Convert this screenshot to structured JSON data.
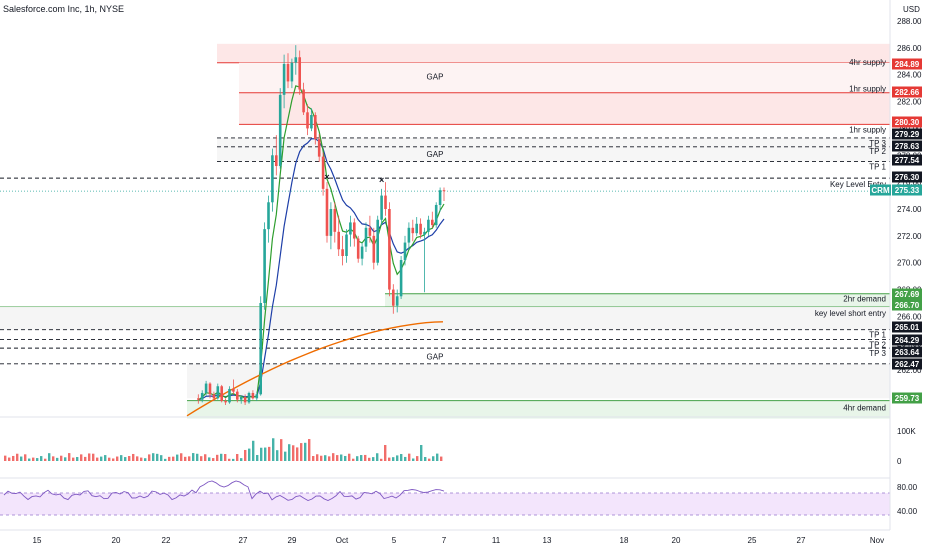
{
  "header": {
    "title": "Salesforce.com Inc, 1h, NYSE",
    "currency": "USD"
  },
  "chart_data": {
    "type": "candlestick",
    "title": "Salesforce.com Inc, 1h, NYSE",
    "currency": "USD",
    "y_ticks": [
      "288.00",
      "286.00",
      "284.00",
      "282.00",
      "280.00",
      "278.00",
      "276.00",
      "274.00",
      "272.00",
      "270.00",
      "268.00",
      "266.00",
      "264.00",
      "262.00",
      "260.00"
    ],
    "x_ticks": [
      "15",
      "20",
      "22",
      "27",
      "29",
      "Oct",
      "5",
      "7",
      "11",
      "13",
      "18",
      "20",
      "25",
      "27",
      "Nov"
    ],
    "price_tags": [
      {
        "value": "284.89",
        "color": "#e53935"
      },
      {
        "value": "282.66",
        "color": "#e53935"
      },
      {
        "value": "280.30",
        "color": "#e53935"
      },
      {
        "value": "279.29",
        "color": "#131722"
      },
      {
        "value": "278.63",
        "color": "#131722"
      },
      {
        "value": "277.54",
        "color": "#131722"
      },
      {
        "value": "276.30",
        "color": "#131722"
      },
      {
        "value": "275.33",
        "color": "#26a69a",
        "symbol": "CRM"
      },
      {
        "value": "267.69",
        "color": "#43a047"
      },
      {
        "value": "266.70",
        "color": "#43a047"
      },
      {
        "value": "265.01",
        "color": "#131722"
      },
      {
        "value": "264.29",
        "color": "#131722"
      },
      {
        "value": "263.64",
        "color": "#131722"
      },
      {
        "value": "262.47",
        "color": "#131722"
      },
      {
        "value": "259.73",
        "color": "#43a047"
      }
    ],
    "zones": [
      {
        "label": "4hr supply",
        "top": 286.3,
        "bottom": 284.89,
        "type": "supply"
      },
      {
        "label": "1hr supply",
        "top": 284.89,
        "bottom": 282.66,
        "type": "supply"
      },
      {
        "label": "1hr supply",
        "top": 282.66,
        "bottom": 280.3,
        "type": "supply"
      },
      {
        "label": "2hr demand",
        "top": 267.69,
        "bottom": 266.7,
        "type": "demand"
      },
      {
        "label": "4hr demand",
        "top": 259.73,
        "bottom": 258.5,
        "type": "demand"
      }
    ],
    "annotations": [
      "GAP",
      "GAP",
      "GAP",
      "TP 3",
      "TP 2",
      "TP 1",
      "TP 1",
      "TP 2",
      "TP 3",
      "Key Level Entry",
      "key level short entry"
    ],
    "lines": [
      {
        "label": "TP 3",
        "value": 279.29,
        "style": "dashed"
      },
      {
        "label": "TP 2",
        "value": 278.63,
        "style": "dashed"
      },
      {
        "label": "TP 1",
        "value": 277.54,
        "style": "dashed"
      },
      {
        "label": "Key Level Entry",
        "value": 276.3,
        "style": "dashed"
      },
      {
        "label": "key level short entry",
        "value": 265.01,
        "style": "dashed"
      },
      {
        "label": "TP 1",
        "value": 264.29,
        "style": "dashed"
      },
      {
        "label": "TP 2",
        "value": 263.64,
        "style": "dashed"
      },
      {
        "label": "TP 3",
        "value": 262.47,
        "style": "dashed"
      }
    ],
    "last_price": 275.33,
    "ylim": [
      258.5,
      289.5
    ],
    "volume": {
      "ticks": [
        "100K",
        "0"
      ]
    },
    "rsi": {
      "ticks": [
        "80.00",
        "40.00"
      ],
      "last": 58
    },
    "ohlc_approx": [
      [
        259.9,
        260.2,
        259.5,
        259.8
      ],
      [
        259.8,
        260.5,
        259.6,
        260.3
      ],
      [
        260.3,
        261.2,
        260.1,
        261.0
      ],
      [
        261.0,
        261.1,
        259.9,
        260.2
      ],
      [
        260.2,
        260.4,
        259.7,
        259.9
      ],
      [
        259.9,
        261.0,
        259.8,
        260.8
      ],
      [
        260.8,
        260.9,
        259.6,
        259.7
      ],
      [
        259.7,
        259.9,
        259.4,
        259.6
      ],
      [
        259.6,
        260.8,
        259.5,
        260.6
      ],
      [
        260.6,
        261.3,
        260.2,
        260.4
      ],
      [
        260.4,
        260.6,
        259.6,
        259.8
      ],
      [
        259.8,
        260.1,
        259.5,
        260.0
      ],
      [
        260.0,
        260.2,
        259.4,
        259.6
      ],
      [
        259.6,
        260.4,
        259.5,
        260.3
      ],
      [
        260.3,
        260.5,
        259.8,
        259.9
      ],
      [
        259.9,
        260.4,
        259.7,
        260.2
      ],
      [
        260.2,
        267.5,
        260.1,
        267.0
      ],
      [
        267.0,
        273.0,
        266.5,
        272.5
      ],
      [
        272.5,
        275.0,
        271.5,
        274.5
      ],
      [
        274.5,
        278.5,
        273.8,
        278.0
      ],
      [
        278.0,
        279.5,
        276.5,
        277.2
      ],
      [
        277.2,
        283.0,
        277.0,
        282.5
      ],
      [
        282.5,
        285.5,
        281.5,
        284.8
      ],
      [
        284.8,
        285.6,
        283.0,
        283.5
      ],
      [
        283.5,
        285.2,
        283.0,
        284.9
      ],
      [
        284.9,
        286.2,
        284.0,
        285.3
      ],
      [
        285.3,
        285.8,
        282.5,
        282.9
      ],
      [
        282.9,
        283.4,
        281.0,
        281.2
      ],
      [
        281.2,
        281.8,
        279.5,
        280.0
      ],
      [
        280.0,
        281.5,
        279.8,
        281.0
      ],
      [
        281.0,
        281.2,
        278.8,
        279.2
      ],
      [
        279.2,
        279.6,
        277.5,
        277.9
      ],
      [
        277.9,
        278.2,
        275.0,
        275.5
      ],
      [
        275.5,
        276.0,
        271.5,
        272.0
      ],
      [
        272.0,
        274.5,
        271.0,
        274.0
      ],
      [
        274.0,
        274.5,
        271.5,
        272.3
      ],
      [
        272.3,
        273.5,
        270.5,
        271.0
      ],
      [
        271.0,
        272.0,
        269.8,
        270.5
      ],
      [
        270.5,
        272.5,
        270.0,
        272.1
      ],
      [
        272.1,
        273.5,
        271.2,
        273.0
      ],
      [
        273.0,
        273.3,
        271.2,
        271.8
      ],
      [
        271.8,
        272.0,
        270.0,
        270.3
      ],
      [
        270.3,
        271.5,
        269.8,
        271.2
      ],
      [
        271.2,
        273.0,
        270.8,
        272.6
      ],
      [
        272.6,
        273.5,
        271.5,
        272.0
      ],
      [
        272.0,
        272.6,
        269.5,
        270.0
      ],
      [
        270.0,
        273.5,
        269.8,
        273.2
      ],
      [
        273.2,
        275.5,
        272.8,
        275.0
      ],
      [
        275.0,
        276.0,
        273.5,
        274.0
      ],
      [
        274.0,
        274.5,
        267.5,
        268.0
      ],
      [
        268.0,
        268.4,
        266.2,
        266.8
      ],
      [
        266.8,
        268.0,
        266.3,
        267.5
      ],
      [
        267.5,
        270.5,
        267.3,
        270.2
      ],
      [
        270.2,
        272.0,
        269.8,
        271.5
      ],
      [
        271.5,
        273.0,
        271.0,
        272.6
      ],
      [
        272.6,
        273.2,
        271.6,
        272.2
      ],
      [
        272.2,
        273.4,
        272.0,
        272.9
      ],
      [
        272.9,
        273.3,
        271.8,
        272.1
      ],
      [
        272.1,
        272.6,
        267.8,
        272.3
      ],
      [
        272.3,
        273.5,
        272.0,
        273.2
      ],
      [
        273.2,
        273.8,
        272.6,
        272.8
      ],
      [
        272.8,
        274.5,
        272.6,
        274.3
      ],
      [
        274.3,
        275.6,
        273.8,
        275.4
      ],
      [
        275.4,
        275.6,
        274.6,
        275.33
      ]
    ]
  }
}
